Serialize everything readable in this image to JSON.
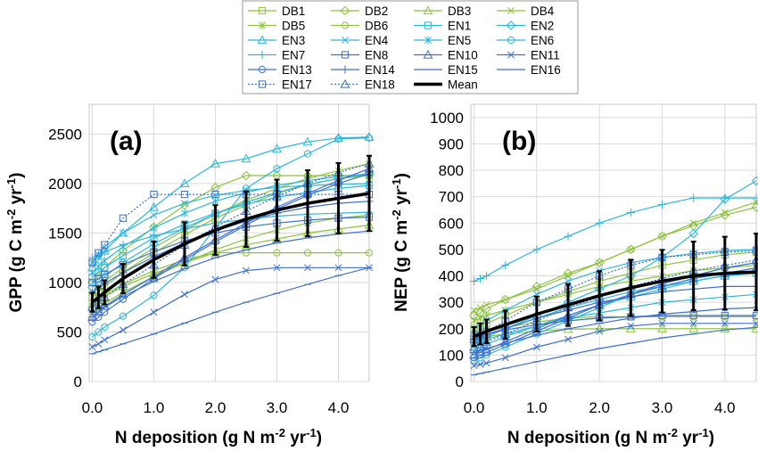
{
  "chart_data": [
    {
      "type": "line",
      "panel_label": "(a)",
      "xlabel": "N deposition (g N m-2 yr-1)",
      "ylabel": "GPP (g C m-2 yr-1)",
      "xlim": [
        -0.05,
        4.5
      ],
      "ylim": [
        0,
        2800
      ],
      "xticks": [
        "0.0",
        "1.0",
        "2.0",
        "3.0",
        "4.0"
      ],
      "yticks": [
        "0",
        "500",
        "1000",
        "1500",
        "2000",
        "2500"
      ],
      "x": [
        0,
        0.1,
        0.2,
        0.5,
        1.0,
        1.5,
        2.0,
        2.5,
        3.0,
        3.5,
        4.0,
        4.5
      ],
      "series": [
        {
          "name": "DB1",
          "values": [
            850,
            900,
            960,
            1100,
            1300,
            1480,
            1650,
            1780,
            1900,
            1990,
            2050,
            2080
          ]
        },
        {
          "name": "DB2",
          "values": [
            1000,
            1070,
            1150,
            1320,
            1560,
            1780,
            1960,
            2080,
            2080,
            2080,
            2080,
            2080
          ]
        },
        {
          "name": "DB3",
          "values": [
            780,
            820,
            860,
            960,
            1090,
            1200,
            1300,
            1380,
            1440,
            1500,
            1540,
            1580
          ]
        },
        {
          "name": "DB4",
          "values": [
            900,
            950,
            1010,
            1150,
            1350,
            1530,
            1690,
            1830,
            1950,
            2050,
            2130,
            2200
          ]
        },
        {
          "name": "DB5",
          "values": [
            700,
            740,
            790,
            900,
            1060,
            1200,
            1330,
            1440,
            1530,
            1600,
            1650,
            1680
          ]
        },
        {
          "name": "DB6",
          "values": [
            800,
            840,
            880,
            980,
            1120,
            1230,
            1300,
            1300,
            1300,
            1300,
            1300,
            1300
          ]
        },
        {
          "name": "EN1",
          "values": [
            1050,
            1100,
            1150,
            1270,
            1450,
            1590,
            1700,
            1790,
            1860,
            1910,
            1950,
            1980
          ]
        },
        {
          "name": "EN2",
          "values": [
            950,
            1000,
            1060,
            1200,
            1390,
            1550,
            1690,
            1810,
            1910,
            1990,
            2050,
            2100
          ]
        },
        {
          "name": "EN3",
          "values": [
            1150,
            1230,
            1320,
            1500,
            1760,
            2000,
            2200,
            2250,
            2350,
            2420,
            2460,
            2470
          ]
        },
        {
          "name": "EN4",
          "values": [
            1200,
            1280,
            1360,
            1500,
            1680,
            1800,
            1880,
            1930,
            1960,
            1980,
            1990,
            2000
          ]
        },
        {
          "name": "EN5",
          "values": [
            1100,
            1160,
            1220,
            1360,
            1550,
            1700,
            1820,
            1910,
            1980,
            2030,
            2070,
            2100
          ]
        },
        {
          "name": "EN6",
          "values": [
            450,
            500,
            550,
            660,
            870,
            1150,
            1550,
            1950,
            2150,
            2300,
            2450,
            2460
          ]
        },
        {
          "name": "EN7",
          "values": [
            1250,
            1280,
            1310,
            1380,
            1470,
            1540,
            1600,
            1640,
            1670,
            1690,
            1700,
            1710
          ]
        },
        {
          "name": "EN8",
          "values": [
            1000,
            1040,
            1080,
            1180,
            1310,
            1420,
            1500,
            1560,
            1600,
            1630,
            1650,
            1660
          ]
        },
        {
          "name": "EN10",
          "values": [
            650,
            700,
            760,
            880,
            1060,
            1250,
            1430,
            1600,
            1760,
            1900,
            2030,
            2150
          ]
        },
        {
          "name": "EN11",
          "values": [
            350,
            380,
            420,
            520,
            700,
            880,
            1030,
            1120,
            1150,
            1150,
            1150,
            1150
          ]
        },
        {
          "name": "EN13",
          "values": [
            600,
            650,
            700,
            830,
            1040,
            1230,
            1410,
            1580,
            1740,
            1880,
            2000,
            2100
          ]
        },
        {
          "name": "EN14",
          "values": [
            900,
            940,
            990,
            1100,
            1260,
            1400,
            1520,
            1620,
            1700,
            1760,
            1800,
            1820
          ]
        },
        {
          "name": "EN15",
          "values": [
            280,
            300,
            320,
            380,
            480,
            590,
            700,
            800,
            890,
            980,
            1070,
            1150
          ]
        },
        {
          "name": "EN16",
          "values": [
            650,
            700,
            750,
            860,
            1010,
            1140,
            1250,
            1330,
            1400,
            1450,
            1490,
            1520
          ]
        },
        {
          "name": "EN17",
          "values": [
            1200,
            1300,
            1380,
            1650,
            1890,
            1890,
            1890,
            1890,
            1890,
            1890,
            1890,
            1890
          ]
        },
        {
          "name": "EN18",
          "values": [
            750,
            800,
            850,
            980,
            1180,
            1380,
            1560,
            1720,
            1870,
            2000,
            2110,
            2200
          ]
        },
        {
          "name": "Mean",
          "values": [
            800,
            850,
            900,
            1040,
            1230,
            1390,
            1530,
            1640,
            1730,
            1800,
            1850,
            1900
          ]
        }
      ]
    },
    {
      "type": "line",
      "panel_label": "(b)",
      "xlabel": "N deposition (g N m-2 yr-1)",
      "ylabel": "NEP (g C m-2 yr-1)",
      "xlim": [
        -0.05,
        4.5
      ],
      "ylim": [
        0,
        1050
      ],
      "xticks": [
        "0.0",
        "1.0",
        "2.0",
        "3.0",
        "4.0"
      ],
      "yticks": [
        "0",
        "100",
        "200",
        "300",
        "400",
        "500",
        "600",
        "700",
        "800",
        "900",
        "1000"
      ],
      "x": [
        0,
        0.1,
        0.2,
        0.5,
        1.0,
        1.5,
        2.0,
        2.5,
        3.0,
        3.5,
        4.0,
        4.5
      ],
      "series": [
        {
          "name": "DB1",
          "values": [
            200,
            210,
            220,
            250,
            300,
            340,
            380,
            410,
            440,
            460,
            480,
            490
          ]
        },
        {
          "name": "DB2",
          "values": [
            250,
            260,
            275,
            310,
            360,
            410,
            450,
            500,
            550,
            590,
            630,
            660
          ]
        },
        {
          "name": "DB3",
          "values": [
            160,
            165,
            170,
            180,
            190,
            198,
            200,
            200,
            200,
            200,
            200,
            200
          ]
        },
        {
          "name": "DB4",
          "values": [
            270,
            280,
            290,
            310,
            350,
            400,
            450,
            500,
            550,
            600,
            640,
            680
          ]
        },
        {
          "name": "DB5",
          "values": [
            230,
            240,
            250,
            270,
            300,
            330,
            360,
            380,
            400,
            420,
            430,
            440
          ]
        },
        {
          "name": "DB6",
          "values": [
            180,
            185,
            190,
            205,
            225,
            240,
            245,
            245,
            245,
            245,
            245,
            245
          ]
        },
        {
          "name": "EN1",
          "values": [
            150,
            160,
            170,
            200,
            240,
            280,
            310,
            340,
            360,
            380,
            400,
            410
          ]
        },
        {
          "name": "EN2",
          "values": [
            150,
            160,
            170,
            200,
            250,
            300,
            350,
            400,
            470,
            560,
            690,
            760
          ]
        },
        {
          "name": "EN3",
          "values": [
            120,
            130,
            140,
            170,
            210,
            250,
            290,
            320,
            350,
            380,
            400,
            420
          ]
        },
        {
          "name": "EN4",
          "values": [
            200,
            215,
            230,
            270,
            330,
            380,
            420,
            450,
            470,
            485,
            495,
            500
          ]
        },
        {
          "name": "EN5",
          "values": [
            140,
            150,
            160,
            180,
            210,
            240,
            260,
            280,
            300,
            310,
            320,
            330
          ]
        },
        {
          "name": "EN6",
          "values": [
            80,
            90,
            100,
            130,
            180,
            230,
            280,
            330,
            370,
            400,
            430,
            450
          ]
        },
        {
          "name": "EN7",
          "values": [
            380,
            390,
            400,
            440,
            500,
            550,
            600,
            640,
            670,
            695,
            695,
            695
          ]
        },
        {
          "name": "EN8",
          "values": [
            170,
            175,
            180,
            195,
            215,
            230,
            240,
            245,
            250,
            250,
            250,
            250
          ]
        },
        {
          "name": "EN10",
          "values": [
            100,
            110,
            120,
            150,
            200,
            250,
            290,
            330,
            360,
            390,
            410,
            430
          ]
        },
        {
          "name": "EN11",
          "values": [
            60,
            65,
            70,
            90,
            130,
            160,
            190,
            210,
            220,
            220,
            220,
            220
          ]
        },
        {
          "name": "EN13",
          "values": [
            90,
            100,
            110,
            140,
            190,
            240,
            290,
            330,
            370,
            400,
            430,
            450
          ]
        },
        {
          "name": "EN14",
          "values": [
            160,
            170,
            180,
            200,
            240,
            270,
            300,
            320,
            340,
            350,
            360,
            360
          ]
        },
        {
          "name": "EN15",
          "values": [
            25,
            30,
            35,
            50,
            75,
            100,
            125,
            145,
            165,
            180,
            195,
            205
          ]
        },
        {
          "name": "EN16",
          "values": [
            110,
            118,
            125,
            145,
            175,
            200,
            220,
            240,
            255,
            265,
            275,
            280
          ]
        },
        {
          "name": "EN17",
          "values": [
            160,
            175,
            190,
            230,
            300,
            350,
            400,
            440,
            470,
            480,
            490,
            495
          ]
        },
        {
          "name": "EN18",
          "values": [
            130,
            140,
            150,
            180,
            230,
            280,
            320,
            360,
            390,
            420,
            440,
            460
          ]
        },
        {
          "name": "Mean",
          "values": [
            170,
            180,
            190,
            215,
            255,
            290,
            325,
            355,
            380,
            400,
            410,
            415
          ]
        }
      ]
    }
  ],
  "legend": {
    "entries": [
      "DB1",
      "DB2",
      "DB3",
      "DB4",
      "DB5",
      "DB6",
      "EN1",
      "EN2",
      "EN3",
      "EN4",
      "EN5",
      "EN6",
      "EN7",
      "EN8",
      "EN10",
      "EN11",
      "EN13",
      "EN14",
      "EN15",
      "EN16",
      "EN17",
      "EN18",
      "Mean"
    ],
    "columns": 4,
    "placement": "top-center"
  },
  "styles": {
    "DB1": {
      "color": "#8CC43D",
      "marker": "square",
      "dash": false
    },
    "DB2": {
      "color": "#8CC43D",
      "marker": "diamond",
      "dash": false
    },
    "DB3": {
      "color": "#8CC43D",
      "marker": "triangle",
      "dash": false
    },
    "DB4": {
      "color": "#8CC43D",
      "marker": "x",
      "dash": false
    },
    "DB5": {
      "color": "#8CC43D",
      "marker": "star",
      "dash": false
    },
    "DB6": {
      "color": "#8CC43D",
      "marker": "circle",
      "dash": false
    },
    "EN1": {
      "color": "#2BB6DF",
      "marker": "square",
      "dash": false
    },
    "EN2": {
      "color": "#2BB6DF",
      "marker": "diamond",
      "dash": false
    },
    "EN3": {
      "color": "#2BB6DF",
      "marker": "triangle",
      "dash": false
    },
    "EN4": {
      "color": "#2BB6DF",
      "marker": "x",
      "dash": false
    },
    "EN5": {
      "color": "#2BB6DF",
      "marker": "star",
      "dash": false
    },
    "EN6": {
      "color": "#2BB6DF",
      "marker": "circle",
      "dash": false
    },
    "EN7": {
      "color": "#2BB6DF",
      "marker": "plus",
      "dash": false
    },
    "EN8": {
      "color": "#3E6FD0",
      "marker": "square",
      "dash": false
    },
    "EN10": {
      "color": "#3E6FD0",
      "marker": "triangle",
      "dash": false
    },
    "EN11": {
      "color": "#3E6FD0",
      "marker": "x",
      "dash": false
    },
    "EN13": {
      "color": "#3E6FD0",
      "marker": "circle",
      "dash": false
    },
    "EN14": {
      "color": "#3E6FD0",
      "marker": "plus",
      "dash": false
    },
    "EN15": {
      "color": "#3E6FD0",
      "marker": "dash",
      "dash": false
    },
    "EN16": {
      "color": "#3E6FD0",
      "marker": "bar",
      "dash": false
    },
    "EN17": {
      "color": "#3E6FD0",
      "marker": "square",
      "dash": true
    },
    "EN18": {
      "color": "#3E6FD0",
      "marker": "triangle",
      "dash": true
    },
    "Mean": {
      "color": "#000000",
      "marker": "none",
      "dash": false
    }
  }
}
